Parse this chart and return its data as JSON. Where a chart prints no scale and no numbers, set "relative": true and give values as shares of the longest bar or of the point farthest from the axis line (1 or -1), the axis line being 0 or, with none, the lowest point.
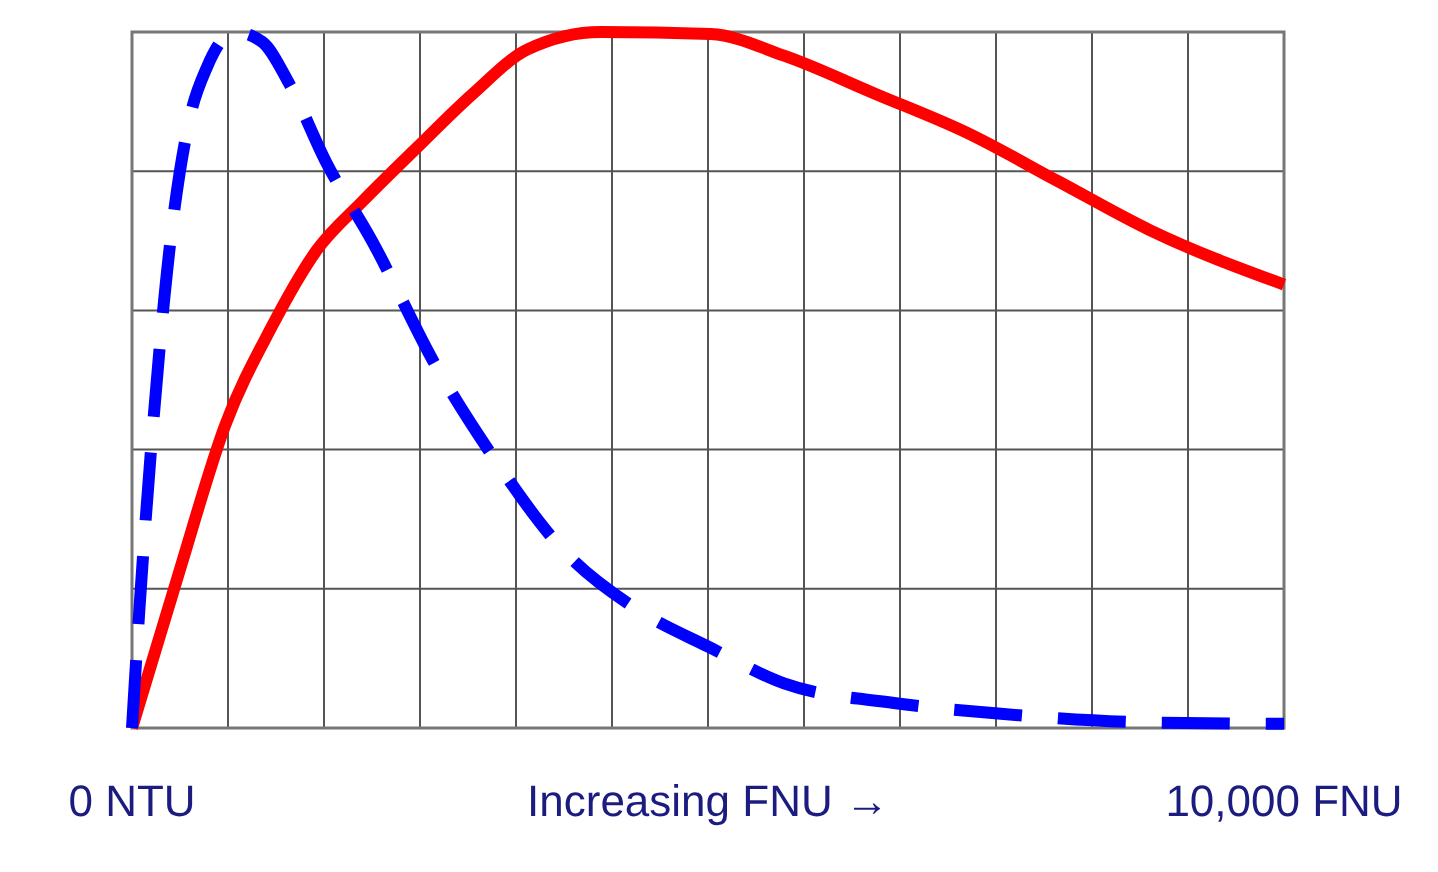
{
  "chart_data": {
    "type": "line",
    "relative": true,
    "xlabel": "Increasing FNU →",
    "xlim": [
      0,
      10000
    ],
    "xticks": [
      {
        "value": 0,
        "label": "0 NTU"
      },
      {
        "value": 833.33,
        "label": null
      },
      {
        "value": 1666.67,
        "label": null
      },
      {
        "value": 2500,
        "label": null
      },
      {
        "value": 3333.33,
        "label": null
      },
      {
        "value": 4166.67,
        "label": null
      },
      {
        "value": 5000,
        "label": null
      },
      {
        "value": 5833.33,
        "label": null
      },
      {
        "value": 6666.67,
        "label": null
      },
      {
        "value": 7500,
        "label": null
      },
      {
        "value": 8333.33,
        "label": null
      },
      {
        "value": 9166.67,
        "label": null
      },
      {
        "value": 10000,
        "label": "10,000 FNU"
      }
    ],
    "grid": true,
    "series": [
      {
        "color": "#ff0000",
        "line_style": "solid",
        "x": [
          0,
          413,
          811,
          1208,
          1606,
          2003,
          2480,
          2957,
          3434,
          4070,
          5024,
          5660,
          6455,
          7250,
          8045,
          8839,
          10000
        ],
        "values": [
          0,
          0.226,
          0.436,
          0.575,
          0.687,
          0.757,
          0.835,
          0.911,
          0.975,
          1.0,
          0.997,
          0.966,
          0.911,
          0.855,
          0.785,
          0.715,
          0.637
        ]
      },
      {
        "color": "#0000ff",
        "line_style": "dashed",
        "x": [
          0,
          64,
          175,
          334,
          493,
          652,
          890,
          1129,
          1367,
          1685,
          2083,
          2639,
          3116,
          3752,
          4388,
          5024,
          5660,
          6614,
          7568,
          8839,
          10000
        ],
        "values": [
          0,
          0.17,
          0.42,
          0.7,
          0.87,
          0.95,
          1.0,
          0.986,
          0.925,
          0.813,
          0.7,
          0.52,
          0.394,
          0.254,
          0.17,
          0.115,
          0.064,
          0.036,
          0.02,
          0.008,
          0.006
        ]
      }
    ]
  }
}
